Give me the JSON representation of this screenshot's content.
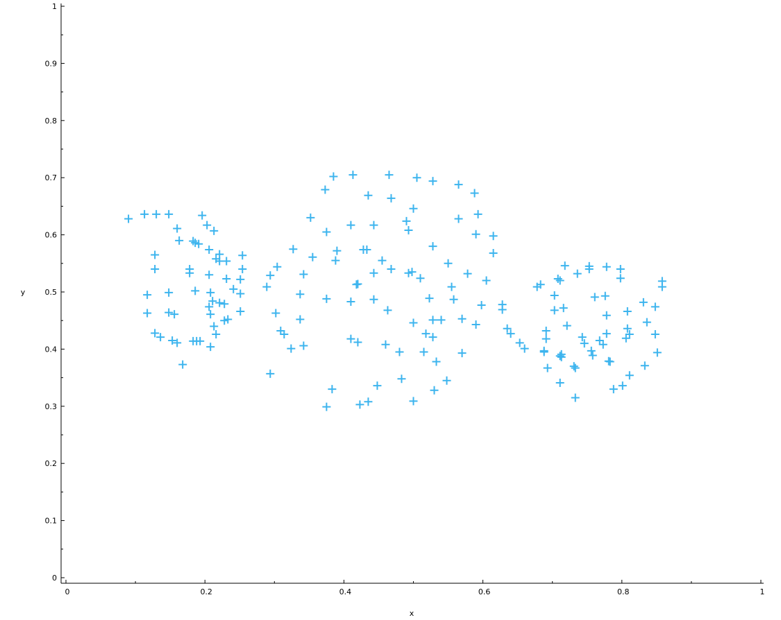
{
  "chart_data": {
    "type": "scatter",
    "title": "",
    "xlabel": "x",
    "ylabel": "y",
    "xlim": [
      0,
      1
    ],
    "ylim": [
      0,
      1
    ],
    "xticks": [
      "0",
      "0.2",
      "0.4",
      "0.6",
      "0.8",
      "1"
    ],
    "yticks": [
      "0",
      "0.1",
      "0.2",
      "0.3",
      "0.4",
      "0.5",
      "0.6",
      "0.7",
      "0.8",
      "0.9",
      "1"
    ],
    "grid": false,
    "marker": "plus",
    "marker_color": "#3cb4ee",
    "points": [
      [
        0.09,
        0.628
      ],
      [
        0.113,
        0.636
      ],
      [
        0.13,
        0.636
      ],
      [
        0.148,
        0.636
      ],
      [
        0.16,
        0.611
      ],
      [
        0.163,
        0.59
      ],
      [
        0.128,
        0.565
      ],
      [
        0.128,
        0.54
      ],
      [
        0.117,
        0.495
      ],
      [
        0.117,
        0.463
      ],
      [
        0.128,
        0.428
      ],
      [
        0.136,
        0.421
      ],
      [
        0.148,
        0.499
      ],
      [
        0.148,
        0.464
      ],
      [
        0.156,
        0.461
      ],
      [
        0.153,
        0.415
      ],
      [
        0.16,
        0.411
      ],
      [
        0.168,
        0.373
      ],
      [
        0.196,
        0.634
      ],
      [
        0.203,
        0.617
      ],
      [
        0.213,
        0.607
      ],
      [
        0.183,
        0.589
      ],
      [
        0.186,
        0.586
      ],
      [
        0.191,
        0.584
      ],
      [
        0.206,
        0.574
      ],
      [
        0.221,
        0.566
      ],
      [
        0.216,
        0.558
      ],
      [
        0.221,
        0.554
      ],
      [
        0.231,
        0.554
      ],
      [
        0.178,
        0.54
      ],
      [
        0.178,
        0.533
      ],
      [
        0.206,
        0.53
      ],
      [
        0.231,
        0.523
      ],
      [
        0.186,
        0.502
      ],
      [
        0.208,
        0.499
      ],
      [
        0.211,
        0.484
      ],
      [
        0.221,
        0.481
      ],
      [
        0.228,
        0.479
      ],
      [
        0.206,
        0.474
      ],
      [
        0.208,
        0.461
      ],
      [
        0.213,
        0.44
      ],
      [
        0.216,
        0.426
      ],
      [
        0.228,
        0.45
      ],
      [
        0.233,
        0.452
      ],
      [
        0.183,
        0.414
      ],
      [
        0.188,
        0.414
      ],
      [
        0.193,
        0.414
      ],
      [
        0.208,
        0.404
      ],
      [
        0.241,
        0.505
      ],
      [
        0.251,
        0.522
      ],
      [
        0.254,
        0.54
      ],
      [
        0.254,
        0.564
      ],
      [
        0.251,
        0.497
      ],
      [
        0.251,
        0.466
      ],
      [
        0.289,
        0.509
      ],
      [
        0.294,
        0.529
      ],
      [
        0.304,
        0.544
      ],
      [
        0.294,
        0.357
      ],
      [
        0.302,
        0.463
      ],
      [
        0.309,
        0.432
      ],
      [
        0.314,
        0.426
      ],
      [
        0.324,
        0.401
      ],
      [
        0.327,
        0.575
      ],
      [
        0.337,
        0.496
      ],
      [
        0.337,
        0.452
      ],
      [
        0.342,
        0.531
      ],
      [
        0.342,
        0.406
      ],
      [
        0.352,
        0.63
      ],
      [
        0.355,
        0.561
      ],
      [
        0.373,
        0.679
      ],
      [
        0.375,
        0.605
      ],
      [
        0.375,
        0.488
      ],
      [
        0.375,
        0.299
      ],
      [
        0.383,
        0.33
      ],
      [
        0.385,
        0.702
      ],
      [
        0.388,
        0.555
      ],
      [
        0.39,
        0.572
      ],
      [
        0.41,
        0.617
      ],
      [
        0.41,
        0.483
      ],
      [
        0.41,
        0.418
      ],
      [
        0.413,
        0.705
      ],
      [
        0.42,
        0.514
      ],
      [
        0.418,
        0.513
      ],
      [
        0.42,
        0.412
      ],
      [
        0.423,
        0.303
      ],
      [
        0.428,
        0.574
      ],
      [
        0.433,
        0.574
      ],
      [
        0.435,
        0.669
      ],
      [
        0.435,
        0.308
      ],
      [
        0.443,
        0.617
      ],
      [
        0.443,
        0.533
      ],
      [
        0.443,
        0.487
      ],
      [
        0.448,
        0.336
      ],
      [
        0.455,
        0.555
      ],
      [
        0.46,
        0.408
      ],
      [
        0.463,
        0.468
      ],
      [
        0.465,
        0.705
      ],
      [
        0.468,
        0.664
      ],
      [
        0.468,
        0.54
      ],
      [
        0.48,
        0.395
      ],
      [
        0.483,
        0.348
      ],
      [
        0.49,
        0.624
      ],
      [
        0.493,
        0.608
      ],
      [
        0.493,
        0.533
      ],
      [
        0.498,
        0.535
      ],
      [
        0.5,
        0.646
      ],
      [
        0.5,
        0.446
      ],
      [
        0.5,
        0.309
      ],
      [
        0.505,
        0.7
      ],
      [
        0.51,
        0.524
      ],
      [
        0.515,
        0.395
      ],
      [
        0.518,
        0.427
      ],
      [
        0.523,
        0.489
      ],
      [
        0.528,
        0.694
      ],
      [
        0.528,
        0.58
      ],
      [
        0.528,
        0.451
      ],
      [
        0.528,
        0.421
      ],
      [
        0.53,
        0.328
      ],
      [
        0.533,
        0.378
      ],
      [
        0.54,
        0.451
      ],
      [
        0.548,
        0.345
      ],
      [
        0.55,
        0.55
      ],
      [
        0.555,
        0.509
      ],
      [
        0.558,
        0.487
      ],
      [
        0.565,
        0.688
      ],
      [
        0.565,
        0.628
      ],
      [
        0.57,
        0.453
      ],
      [
        0.57,
        0.393
      ],
      [
        0.578,
        0.532
      ],
      [
        0.588,
        0.673
      ],
      [
        0.59,
        0.601
      ],
      [
        0.59,
        0.443
      ],
      [
        0.593,
        0.636
      ],
      [
        0.598,
        0.477
      ],
      [
        0.605,
        0.52
      ],
      [
        0.615,
        0.598
      ],
      [
        0.615,
        0.568
      ],
      [
        0.628,
        0.478
      ],
      [
        0.628,
        0.469
      ],
      [
        0.635,
        0.436
      ],
      [
        0.64,
        0.427
      ],
      [
        0.653,
        0.411
      ],
      [
        0.66,
        0.401
      ],
      [
        0.678,
        0.509
      ],
      [
        0.683,
        0.513
      ],
      [
        0.688,
        0.397
      ],
      [
        0.688,
        0.395
      ],
      [
        0.691,
        0.418
      ],
      [
        0.691,
        0.432
      ],
      [
        0.693,
        0.367
      ],
      [
        0.703,
        0.494
      ],
      [
        0.703,
        0.468
      ],
      [
        0.708,
        0.523
      ],
      [
        0.711,
        0.52
      ],
      [
        0.711,
        0.388
      ],
      [
        0.713,
        0.386
      ],
      [
        0.713,
        0.391
      ],
      [
        0.711,
        0.341
      ],
      [
        0.716,
        0.472
      ],
      [
        0.718,
        0.546
      ],
      [
        0.721,
        0.441
      ],
      [
        0.731,
        0.37
      ],
      [
        0.733,
        0.367
      ],
      [
        0.733,
        0.315
      ],
      [
        0.736,
        0.532
      ],
      [
        0.743,
        0.421
      ],
      [
        0.746,
        0.41
      ],
      [
        0.753,
        0.54
      ],
      [
        0.753,
        0.545
      ],
      [
        0.756,
        0.397
      ],
      [
        0.758,
        0.389
      ],
      [
        0.761,
        0.491
      ],
      [
        0.768,
        0.415
      ],
      [
        0.773,
        0.408
      ],
      [
        0.776,
        0.493
      ],
      [
        0.778,
        0.544
      ],
      [
        0.778,
        0.459
      ],
      [
        0.778,
        0.427
      ],
      [
        0.781,
        0.379
      ],
      [
        0.783,
        0.378
      ],
      [
        0.788,
        0.33
      ],
      [
        0.798,
        0.54
      ],
      [
        0.798,
        0.524
      ],
      [
        0.801,
        0.336
      ],
      [
        0.806,
        0.419
      ],
      [
        0.808,
        0.466
      ],
      [
        0.808,
        0.436
      ],
      [
        0.811,
        0.426
      ],
      [
        0.811,
        0.354
      ],
      [
        0.831,
        0.482
      ],
      [
        0.833,
        0.371
      ],
      [
        0.836,
        0.447
      ],
      [
        0.848,
        0.474
      ],
      [
        0.848,
        0.426
      ],
      [
        0.851,
        0.394
      ],
      [
        0.858,
        0.519
      ],
      [
        0.858,
        0.509
      ]
    ]
  }
}
